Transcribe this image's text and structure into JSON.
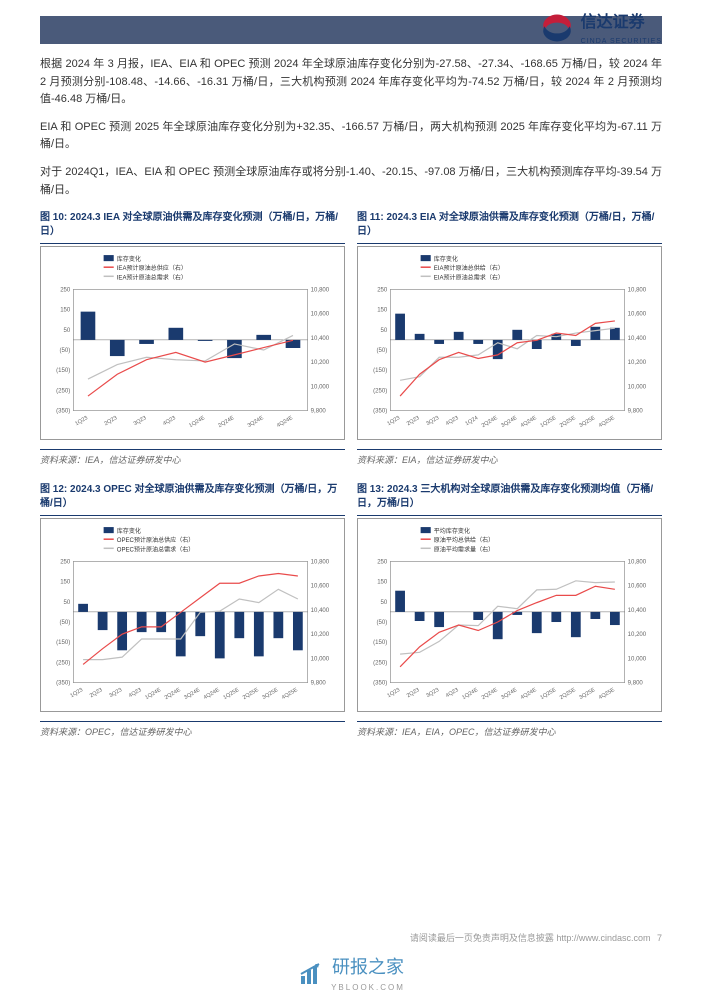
{
  "header": {
    "logo_cn": "信达证券",
    "logo_en": "CINDA SECURITIES"
  },
  "paragraphs": [
    "根据 2024 年 3 月报，IEA、EIA 和 OPEC 预测 2024 年全球原油库存变化分别为-27.58、-27.34、-168.65 万桶/日，较 2024 年 2 月预测分别-108.48、-14.66、-16.31 万桶/日，三大机构预测 2024 年库存变化平均为-74.52 万桶/日，较 2024 年 2 月预测均值-46.48 万桶/日。",
    "EIA 和 OPEC 预测 2025 年全球原油库存变化分别为+32.35、-166.57 万桶/日，两大机构预测 2025 年库存变化平均为-67.11 万桶/日。",
    "对于 2024Q1，IEA、EIA 和 OPEC 预测全球原油库存或将分别-1.40、-20.15、-97.08 万桶/日，三大机构预测库存平均-39.54 万桶/日。"
  ],
  "charts": [
    {
      "title": "图 10:  2024.3 IEA 对全球原油供需及库存变化预测（万桶/日，万桶/日）",
      "source": "资料来源：IEA，信达证券研发中心",
      "legend": [
        "库存变化",
        "IEA预计原油总供应（右）",
        "IEA预计原油总需求（右）"
      ],
      "legend_colors": [
        "#1a3a6e",
        "#e94b4b",
        "#c0c0c0"
      ],
      "categories": [
        "1Q23",
        "2Q23",
        "3Q23",
        "4Q23",
        "1Q24E",
        "2Q24E",
        "3Q24E",
        "4Q24E"
      ],
      "bars": [
        140,
        -80,
        -20,
        60,
        -5,
        -90,
        25,
        -40
      ],
      "line1": [
        9920,
        10100,
        10220,
        10280,
        10200,
        10260,
        10320,
        10380
      ],
      "line2": [
        10060,
        10180,
        10240,
        10220,
        10210,
        10350,
        10300,
        10420
      ],
      "ylim_left": [
        -350,
        250
      ],
      "ylim_right": [
        9800,
        10800
      ],
      "ytick_right": 200,
      "ytick_left_labels": [
        250,
        150,
        50,
        -50,
        -150,
        -250,
        -350
      ],
      "bar_color": "#1a3a6e",
      "line1_color": "#e94b4b",
      "line2_color": "#c0c0c0",
      "bg": "#ffffff",
      "grid": "#e8e8e8"
    },
    {
      "title": "图 11:  2024.3 EIA 对全球原油供需及库存变化预测（万桶/日，万桶/日）",
      "source": "资料来源：EIA，信达证券研发中心",
      "legend": [
        "库存变化",
        "EIA预计原油总供给（右）",
        "EIA预计原油总需求（右）"
      ],
      "legend_colors": [
        "#1a3a6e",
        "#e94b4b",
        "#c0c0c0"
      ],
      "categories": [
        "1Q23",
        "2Q23",
        "3Q23",
        "4Q23",
        "1Q24",
        "2Q24E",
        "3Q24E",
        "4Q24E",
        "1Q25E",
        "2Q25E",
        "3Q25E",
        "4Q25E"
      ],
      "bars": [
        130,
        30,
        -20,
        40,
        -20,
        -95,
        50,
        -45,
        30,
        -30,
        65,
        60
      ],
      "line1": [
        9920,
        10100,
        10220,
        10280,
        10230,
        10260,
        10360,
        10380,
        10440,
        10420,
        10520,
        10540
      ],
      "line2": [
        10050,
        10080,
        10240,
        10240,
        10260,
        10360,
        10310,
        10420,
        10410,
        10440,
        10460,
        10480
      ],
      "ylim_left": [
        -350,
        250
      ],
      "ylim_right": [
        9800,
        10800
      ],
      "ytick_right": 200,
      "ytick_left_labels": [
        250,
        150,
        50,
        -50,
        -150,
        -250,
        -350
      ],
      "bar_color": "#1a3a6e",
      "line1_color": "#e94b4b",
      "line2_color": "#c0c0c0",
      "bg": "#ffffff",
      "grid": "#e8e8e8"
    },
    {
      "title": "图 12:  2024.3 OPEC 对全球原油供需及库存变化预测（万桶/日，万桶/日）",
      "source": "资料来源：OPEC，信达证券研发中心",
      "legend": [
        "库存变化",
        "OPEC预计原油总供应（右）",
        "OPEC预计原油总需求（右）"
      ],
      "legend_colors": [
        "#1a3a6e",
        "#e94b4b",
        "#c0c0c0"
      ],
      "categories": [
        "1Q23",
        "2Q23",
        "3Q23",
        "4Q23",
        "1Q24E",
        "2Q24E",
        "3Q24E",
        "4Q24E",
        "1Q25E",
        "2Q25E",
        "3Q25E",
        "4Q25E"
      ],
      "bars": [
        40,
        -90,
        -190,
        -100,
        -100,
        -220,
        -120,
        -230,
        -130,
        -220,
        -130,
        -190
      ],
      "line1": [
        9950,
        10080,
        10200,
        10260,
        10260,
        10380,
        10500,
        10620,
        10620,
        10680,
        10700,
        10680
      ],
      "line2": [
        9990,
        9990,
        10010,
        10160,
        10160,
        10160,
        10380,
        10390,
        10490,
        10460,
        10570,
        10490
      ],
      "ylim_left": [
        -350,
        250
      ],
      "ylim_right": [
        9800,
        10800
      ],
      "ytick_right": 200,
      "ytick_left_labels": [
        250,
        150,
        50,
        -50,
        -150,
        -250,
        -350
      ],
      "bar_color": "#1a3a6e",
      "line1_color": "#e94b4b",
      "line2_color": "#c0c0c0",
      "bg": "#ffffff",
      "grid": "#e8e8e8"
    },
    {
      "title": "图 13:  2024.3 三大机构对全球原油供需及库存变化预测均值（万桶/日，万桶/日）",
      "source": "资料来源：IEA，EIA，OPEC，信达证券研发中心",
      "legend": [
        "平均库存变化",
        "原油平均总供给（右）",
        "原油平均需求量（右）"
      ],
      "legend_colors": [
        "#1a3a6e",
        "#e94b4b",
        "#c0c0c0"
      ],
      "categories": [
        "1Q23",
        "2Q23",
        "3Q23",
        "4Q23",
        "1Q24E",
        "2Q24E",
        "3Q24E",
        "4Q24E",
        "1Q25E",
        "2Q25E",
        "3Q25E",
        "4Q25E"
      ],
      "bars": [
        105,
        -45,
        -75,
        0,
        -40,
        -135,
        -15,
        -105,
        -50,
        -125,
        -35,
        -65
      ],
      "line1": [
        9930,
        10095,
        10215,
        10275,
        10230,
        10300,
        10395,
        10460,
        10520,
        10520,
        10595,
        10570
      ],
      "line2": [
        10035,
        10050,
        10140,
        10275,
        10270,
        10430,
        10410,
        10565,
        10570,
        10640,
        10625,
        10630
      ],
      "ylim_left": [
        -350,
        250
      ],
      "ylim_right": [
        9800,
        10800
      ],
      "ytick_right": 200,
      "ytick_left_labels": [
        250,
        150,
        50,
        -50,
        -150,
        -250,
        -350
      ],
      "bar_color": "#1a3a6e",
      "line1_color": "#e94b4b",
      "line2_color": "#c0c0c0",
      "bg": "#ffffff",
      "grid": "#e8e8e8"
    }
  ],
  "footer": {
    "disclaimer": "请阅读最后一页免责声明及信息披露 http://www.cindasc.com",
    "pagenum": "7",
    "brand": "研报之家",
    "brand_url": "YBLOOK.COM"
  }
}
